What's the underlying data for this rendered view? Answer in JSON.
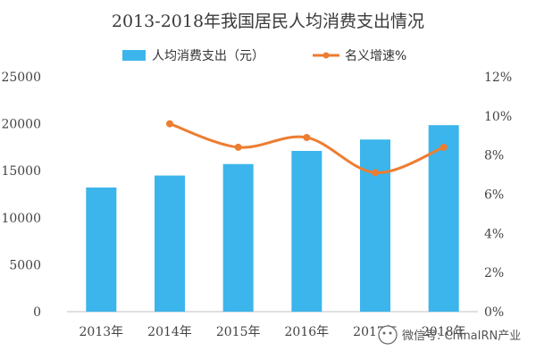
{
  "chart_data": {
    "type": "bar",
    "title": "2013-2018年我国居民人均消费支出情况",
    "categories": [
      "2013年",
      "2014年",
      "2015年",
      "2016年",
      "2017年",
      "2018年"
    ],
    "series": [
      {
        "name": "人均消费支出（元）",
        "type": "bar",
        "axis": "left",
        "color": "#3bb5ec",
        "values": [
          13220,
          14491,
          15712,
          17111,
          18322,
          19853
        ]
      },
      {
        "name": "名义增速%",
        "type": "line",
        "axis": "right",
        "color": "#ed7d31",
        "values": [
          null,
          9.6,
          8.4,
          8.9,
          7.1,
          8.4
        ]
      }
    ],
    "y_left": {
      "ylim": [
        0,
        25000
      ],
      "ticks": [
        "0",
        "5000",
        "10000",
        "15000",
        "20000",
        "25000"
      ]
    },
    "y_right": {
      "ylim": [
        0,
        12
      ],
      "ticks": [
        "0%",
        "2%",
        "4%",
        "6%",
        "8%",
        "10%",
        "12%"
      ]
    },
    "legend": "top",
    "grid": false
  },
  "watermark": {
    "text": "微信号: ChinaIRN产业"
  }
}
